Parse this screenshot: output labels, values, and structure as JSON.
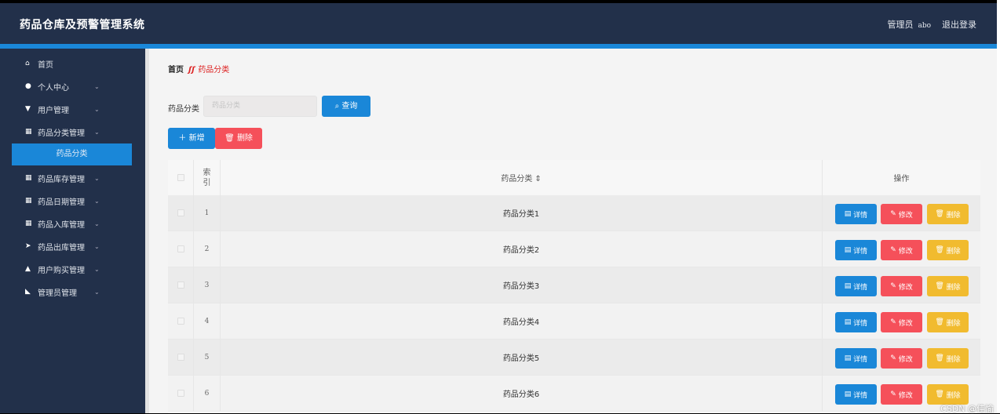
{
  "header": {
    "title": "药品仓库及预警管理系统",
    "role": "管理员",
    "username": "abo",
    "logout": "退出登录"
  },
  "sidebar": {
    "items": [
      {
        "label": "首页",
        "icon": "home-icon",
        "chev": false
      },
      {
        "label": "个人中心",
        "icon": "user-icon",
        "chev": true
      },
      {
        "label": "用户管理",
        "icon": "cup-icon",
        "chev": true
      },
      {
        "label": "药品分类管理",
        "icon": "grid-icon",
        "chev": true
      },
      {
        "label": "药品库存管理",
        "icon": "grid-icon",
        "chev": true
      },
      {
        "label": "药品日期管理",
        "icon": "grid-icon",
        "chev": true
      },
      {
        "label": "药品入库管理",
        "icon": "grid-icon",
        "chev": true
      },
      {
        "label": "药品出库管理",
        "icon": "send-icon",
        "chev": true
      },
      {
        "label": "用户购买管理",
        "icon": "bag-icon",
        "chev": true
      },
      {
        "label": "管理员管理",
        "icon": "wallet-icon",
        "chev": true
      }
    ],
    "active_sub": "药品分类"
  },
  "breadcrumb": {
    "home": "首页",
    "separator": "ʃʃ",
    "current": "药品分类"
  },
  "filter": {
    "label": "药品分类",
    "placeholder": "药品分类",
    "search": "查询"
  },
  "actions": {
    "add": "新增",
    "delete": "删除"
  },
  "table": {
    "headers": {
      "index": "索引",
      "name": "药品分类 ⇕",
      "ops": "操作"
    },
    "rows": [
      {
        "index": "1",
        "name": "药品分类1"
      },
      {
        "index": "2",
        "name": "药品分类2"
      },
      {
        "index": "3",
        "name": "药品分类3"
      },
      {
        "index": "4",
        "name": "药品分类4"
      },
      {
        "index": "5",
        "name": "药品分类5"
      },
      {
        "index": "6",
        "name": "药品分类6"
      }
    ],
    "row_buttons": {
      "detail": "详情",
      "edit": "修改",
      "delete": "删除"
    }
  },
  "watermark": "CSDN @佳愉",
  "colors": {
    "header": "#22304a",
    "accent": "#1a87d8",
    "danger": "#f5505a",
    "warning": "#f1bb2f"
  }
}
